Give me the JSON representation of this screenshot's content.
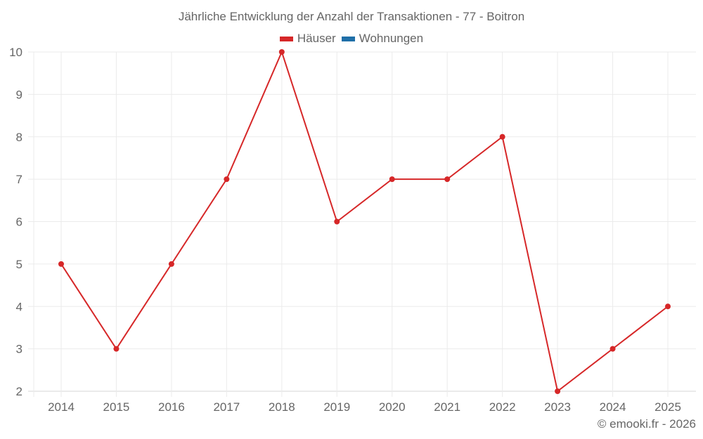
{
  "title": "Jährliche Entwicklung der Anzahl der Transaktionen - 77 - Boitron",
  "legend": [
    {
      "label": "Häuser",
      "color": "#d62728"
    },
    {
      "label": "Wohnungen",
      "color": "#1f6fa8"
    }
  ],
  "credit": "© emooki.fr - 2026",
  "colors": {
    "line": "#d62728",
    "grid": "#ebebeb",
    "axis": "#d6d6d6",
    "text": "#666666"
  },
  "chart_data": {
    "type": "line",
    "title": "Jährliche Entwicklung der Anzahl der Transaktionen - 77 - Boitron",
    "xlabel": "",
    "ylabel": "",
    "categories": [
      "2014",
      "2015",
      "2016",
      "2017",
      "2018",
      "2019",
      "2020",
      "2021",
      "2022",
      "2023",
      "2024",
      "2025"
    ],
    "series": [
      {
        "name": "Häuser",
        "color": "#d62728",
        "values": [
          5,
          3,
          5,
          7,
          10,
          6,
          7,
          7,
          8,
          2,
          3,
          4
        ]
      },
      {
        "name": "Wohnungen",
        "color": "#1f6fa8",
        "values": []
      }
    ],
    "yticks": [
      2,
      3,
      4,
      5,
      6,
      7,
      8,
      9,
      10
    ],
    "ylim": [
      2,
      10
    ],
    "grid": true,
    "legend_position": "top"
  }
}
